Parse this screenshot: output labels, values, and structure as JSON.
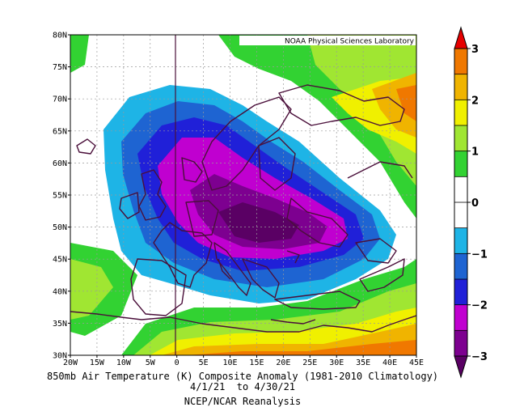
{
  "map": {
    "credit": "NOAA Physical Sciences Laboratory",
    "lat_labels": [
      "30N",
      "35N",
      "40N",
      "45N",
      "50N",
      "55N",
      "60N",
      "65N",
      "70N",
      "75N",
      "80N"
    ],
    "lon_labels": [
      "20W",
      "15W",
      "10W",
      "5W",
      "0",
      "5E",
      "10E",
      "15E",
      "20E",
      "25E",
      "30E",
      "35E",
      "40E",
      "45E"
    ],
    "lat_range": [
      30,
      80
    ],
    "lon_range": [
      -20,
      45
    ]
  },
  "caption": {
    "line1": "850mb Air Temperature (K) Composite Anomaly (1981-2010 Climatology)",
    "line2": "4/1/21  to 4/30/21",
    "line3": "NCEP/NCAR Reanalysis"
  },
  "colorbar": {
    "labels": [
      "3",
      "2",
      "1",
      "0",
      "−1",
      "−2",
      "−3"
    ],
    "colors": {
      "le_m3": "#5a0064",
      "m3_m25": "#7d0090",
      "m25_m2": "#c000d0",
      "m2_m15": "#2020d8",
      "m15_m1": "#1e64d2",
      "m1_m05": "#1eb4e6",
      "m05_05": "#ffffff",
      "p05_1": "#32d232",
      "p1_15": "#a0e632",
      "p15_2": "#f0f000",
      "p2_25": "#f0b400",
      "p25_3": "#f07800",
      "ge_3": "#e60000"
    }
  }
}
